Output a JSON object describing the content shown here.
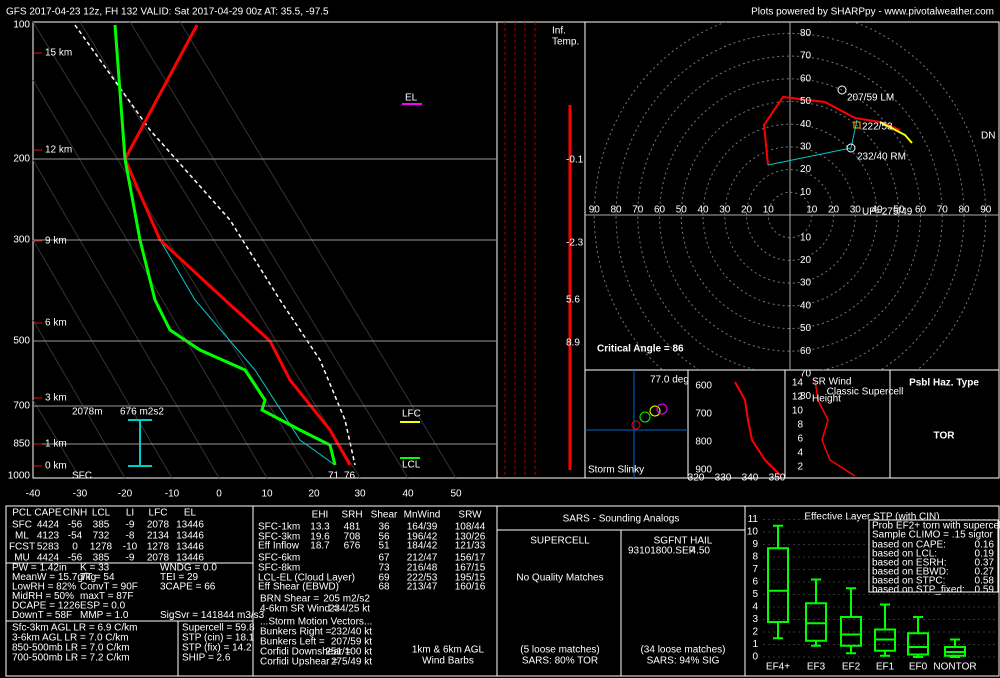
{
  "header": {
    "title": "GFS 2017-04-23 12z, FH 132   VALID: Sat 2017-04-29 00z   AT: 35.5, -97.5",
    "credit": "Plots powered by SHARPpy - www.pivotalweather.com"
  },
  "skewt": {
    "pressure_labels": [
      "100",
      "200",
      "300",
      "500",
      "700",
      "850",
      "1000"
    ],
    "temp_labels": [
      "-40",
      "-30",
      "-20",
      "-10",
      "0",
      "10",
      "20",
      "30",
      "40",
      "50"
    ],
    "height_labels": [
      "15 km",
      "12 km",
      "9 km",
      "6 km",
      "3 km",
      "1 km",
      "0 km"
    ],
    "el": "EL",
    "lfc": "LFC",
    "lcl": "LCL",
    "eff_inflow_top": "2078m",
    "eff_srh": "676 m2s2",
    "sfc": "SFC",
    "sfc_dewpoint": "71",
    "sfc_temp": "76",
    "inferred_temp_title": [
      "Inf.",
      "Temp."
    ],
    "inferred_temp_values": [
      "-0.1",
      "-2.3",
      "5.6",
      "8.9"
    ]
  },
  "hodograph": {
    "ring_labels": [
      "10",
      "20",
      "30",
      "40",
      "50",
      "60",
      "70",
      "80",
      "90"
    ],
    "left_mover": "207/59 LM",
    "right_mover": "232/40 RM",
    "mean_wind": "222/53",
    "upshear": "UP=275/49",
    "downshear": "DN",
    "critical_angle": "Critical Angle = 86"
  },
  "slinky": {
    "angle": "77.0 deg",
    "title": "Storm Slinky"
  },
  "theta_e": {
    "pressure_labels": [
      "600",
      "700",
      "800",
      "900"
    ],
    "theta_labels": [
      "320",
      "330",
      "340",
      "350"
    ]
  },
  "sr_wind": {
    "height_labels": [
      "14",
      "12",
      "10",
      "8",
      "6",
      "4",
      "2"
    ],
    "title": "SR Wind",
    "subtitle": "Height",
    "classic": "Classic Supercell"
  },
  "hazard": {
    "title": "Psbl Haz. Type",
    "type": "TOR"
  },
  "parcels": {
    "header": [
      "PCL",
      "CAPE",
      "CINH",
      "LCL",
      "LI",
      "LFC",
      "EL"
    ],
    "rows": [
      [
        "SFC",
        "4424",
        "-56",
        "385",
        "-9",
        "2078",
        "13446"
      ],
      [
        "ML",
        "4123",
        "-54",
        "732",
        "-8",
        "2134",
        "13446"
      ],
      [
        "FCST",
        "5283",
        "0",
        "1278",
        "-10",
        "1278",
        "13446"
      ],
      [
        "MU",
        "4424",
        "-56",
        "385",
        "-9",
        "2078",
        "13446"
      ]
    ]
  },
  "indices": [
    [
      "PW = 1.42in",
      "K = 33",
      "WNDG = 0.0"
    ],
    [
      "MeanW = 15.7g/kg",
      "TT = 54",
      "TEI = 29"
    ],
    [
      "LowRH = 82%",
      "ConvT = 90F",
      "3CAPE = 66"
    ],
    [
      "MidRH = 50%",
      "maxT = 87F"
    ],
    [
      "DCAPE = 1226",
      "ESP = 0.0"
    ],
    [
      "DownT = 58F",
      "MMP = 1.0",
      "SigSvr = 141844 m3/s3"
    ]
  ],
  "lapse_rates": [
    "Sfc-3km AGL LR = 6.9 C/km",
    "3-6km AGL LR = 7.0 C/km",
    "850-500mb LR = 7.0 C/km",
    "700-500mb LR = 7.2 C/km"
  ],
  "composites": [
    "Supercell = 59.8",
    "STP (cin) = 18.1",
    "STP (fix) = 14.2",
    "SHIP = 2.6"
  ],
  "kinematics": {
    "header": [
      "EHI",
      "SRH",
      "Shear",
      "MnWind",
      "SRW"
    ],
    "rows": [
      [
        "SFC-1km",
        "13.3",
        "481",
        "36",
        "164/39",
        "108/44"
      ],
      [
        "SFC-3km",
        "19.6",
        "708",
        "56",
        "196/42",
        "130/26"
      ],
      [
        "Eff Inflow",
        "18.7",
        "676",
        "51",
        "184/42",
        "121/33"
      ],
      [
        "SFC-6km",
        "67",
        "212/47",
        "156/17"
      ],
      [
        "SFC-8km",
        "73",
        "216/48",
        "167/15"
      ],
      [
        "LCL-EL (Cloud Layer)",
        "69",
        "222/53",
        "195/15"
      ],
      [
        "Eff Shear (EBWD)",
        "68",
        "213/47",
        "160/16"
      ]
    ],
    "extra": [
      [
        "BRN Shear =",
        "205 m2/s2"
      ],
      [
        "4-6km SR Wind =",
        "234/25 kt"
      ]
    ],
    "motion_title": "...Storm Motion Vectors...",
    "motion": [
      [
        "Bunkers Right =",
        "232/40 kt"
      ],
      [
        "Bunkers Left =",
        "207/59 kt"
      ],
      [
        "Corfidi Downshear =",
        "251/100 kt"
      ],
      [
        "Corfidi Upshear =",
        "275/49 kt"
      ]
    ],
    "barbs_note": [
      "1km & 6km AGL",
      "Wind Barbs"
    ]
  },
  "sars": {
    "title": "SARS - Sounding Analogs",
    "supercell": "SUPERCELL",
    "hail": "SGFNT HAIL",
    "supercell_matches": "No Quality Matches",
    "hail_match": "93101800.SEP",
    "hail_size": "4.50",
    "supercell_loose": "(5 loose matches)",
    "hail_loose": "(34 loose matches)",
    "supercell_result": "SARS: 80% TOR",
    "hail_result": "SARS: 94% SIG"
  },
  "stp": {
    "title": "Effective Layer STP (with CIN)",
    "yticks": [
      0,
      1,
      2,
      3,
      4,
      5,
      6,
      7,
      8,
      9,
      10,
      11
    ],
    "categories": [
      "EF4+",
      "EF3",
      "EF2",
      "EF1",
      "EF0",
      "NONTOR"
    ],
    "boxes": [
      [
        1.5,
        2.8,
        5.3,
        8.7,
        10.5
      ],
      [
        0.9,
        1.3,
        2.7,
        4.3,
        6.2
      ],
      [
        0.3,
        0.9,
        1.8,
        3.2,
        5.5
      ],
      [
        0.1,
        0.5,
        1.4,
        2.2,
        4.2
      ],
      [
        0,
        0.2,
        0.8,
        1.9,
        3.2
      ],
      [
        0,
        0.1,
        0.4,
        0.8,
        1.4
      ]
    ],
    "prob_title": [
      "Prob EF2+ torn with supercell",
      "Sample CLIMO = .15 sigtor"
    ],
    "prob": [
      [
        "based on CAPE:",
        "0.16"
      ],
      [
        "based on LCL:",
        "0.19"
      ],
      [
        "based on ESRH:",
        "0.37"
      ],
      [
        "based on EBWD:",
        "0.27"
      ],
      [
        "based on STPC:",
        "0.58"
      ],
      [
        "based on STP_fixed:",
        "0.59"
      ]
    ]
  }
}
